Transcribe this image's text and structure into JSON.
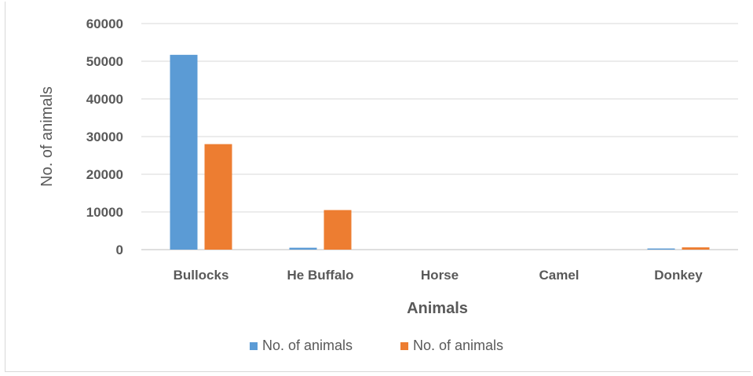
{
  "chart_data": {
    "type": "bar",
    "title": "",
    "xlabel": "Animals",
    "ylabel": "No. of animals",
    "ylim": [
      0,
      60000
    ],
    "yticks": [
      0,
      10000,
      20000,
      30000,
      40000,
      50000,
      60000
    ],
    "categories": [
      "Bullocks",
      "He Buffalo",
      "Horse",
      "Camel",
      "Donkey"
    ],
    "series": [
      {
        "name": "No. of animals",
        "color": "#5b9bd5",
        "values": [
          51700,
          500,
          0,
          0,
          300
        ]
      },
      {
        "name": "No. of animals",
        "color": "#ed7d31",
        "values": [
          28000,
          10500,
          0,
          0,
          600
        ]
      }
    ],
    "grid": true,
    "legend_position": "bottom"
  }
}
